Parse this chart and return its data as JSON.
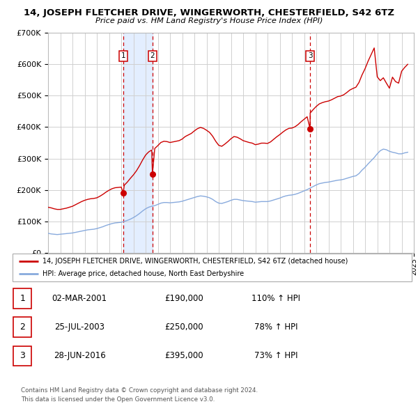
{
  "title": "14, JOSEPH FLETCHER DRIVE, WINGERWORTH, CHESTERFIELD, S42 6TZ",
  "subtitle": "Price paid vs. HM Land Registry's House Price Index (HPI)",
  "sale_color": "#cc0000",
  "hpi_color": "#88aadd",
  "ylim": [
    0,
    700000
  ],
  "yticks": [
    0,
    100000,
    200000,
    300000,
    400000,
    500000,
    600000,
    700000
  ],
  "ytick_labels": [
    "£0",
    "£100K",
    "£200K",
    "£300K",
    "£400K",
    "£500K",
    "£600K",
    "£700K"
  ],
  "sales": [
    {
      "date": 2001.16,
      "price": 190000,
      "label": "1",
      "date_str": "02-MAR-2001",
      "pct": "110%"
    },
    {
      "date": 2003.56,
      "price": 250000,
      "label": "2",
      "date_str": "25-JUL-2003",
      "pct": "78%"
    },
    {
      "date": 2016.49,
      "price": 395000,
      "label": "3",
      "date_str": "28-JUN-2016",
      "pct": "73%"
    }
  ],
  "legend_line1": "14, JOSEPH FLETCHER DRIVE, WINGERWORTH, CHESTERFIELD, S42 6TZ (detached house)",
  "legend_line2": "HPI: Average price, detached house, North East Derbyshire",
  "footer1": "Contains HM Land Registry data © Crown copyright and database right 2024.",
  "footer2": "This data is licensed under the Open Government Licence v3.0.",
  "hpi_data": [
    [
      1995.0,
      62000
    ],
    [
      1995.25,
      60000
    ],
    [
      1995.5,
      59000
    ],
    [
      1995.75,
      58000
    ],
    [
      1996.0,
      59000
    ],
    [
      1996.25,
      60000
    ],
    [
      1996.5,
      61000
    ],
    [
      1996.75,
      62000
    ],
    [
      1997.0,
      63000
    ],
    [
      1997.25,
      65000
    ],
    [
      1997.5,
      67000
    ],
    [
      1997.75,
      69000
    ],
    [
      1998.0,
      71000
    ],
    [
      1998.25,
      73000
    ],
    [
      1998.5,
      74000
    ],
    [
      1998.75,
      75000
    ],
    [
      1999.0,
      77000
    ],
    [
      1999.25,
      80000
    ],
    [
      1999.5,
      83000
    ],
    [
      1999.75,
      87000
    ],
    [
      2000.0,
      90000
    ],
    [
      2000.25,
      93000
    ],
    [
      2000.5,
      95000
    ],
    [
      2000.75,
      96000
    ],
    [
      2001.0,
      97000
    ],
    [
      2001.25,
      100000
    ],
    [
      2001.5,
      103000
    ],
    [
      2001.75,
      107000
    ],
    [
      2002.0,
      112000
    ],
    [
      2002.25,
      118000
    ],
    [
      2002.5,
      125000
    ],
    [
      2002.75,
      133000
    ],
    [
      2003.0,
      140000
    ],
    [
      2003.25,
      145000
    ],
    [
      2003.5,
      148000
    ],
    [
      2003.75,
      150000
    ],
    [
      2004.0,
      154000
    ],
    [
      2004.25,
      158000
    ],
    [
      2004.5,
      160000
    ],
    [
      2004.75,
      160000
    ],
    [
      2005.0,
      159000
    ],
    [
      2005.25,
      160000
    ],
    [
      2005.5,
      161000
    ],
    [
      2005.75,
      162000
    ],
    [
      2006.0,
      164000
    ],
    [
      2006.25,
      167000
    ],
    [
      2006.5,
      170000
    ],
    [
      2006.75,
      173000
    ],
    [
      2007.0,
      176000
    ],
    [
      2007.25,
      179000
    ],
    [
      2007.5,
      181000
    ],
    [
      2007.75,
      180000
    ],
    [
      2008.0,
      178000
    ],
    [
      2008.25,
      175000
    ],
    [
      2008.5,
      170000
    ],
    [
      2008.75,
      163000
    ],
    [
      2009.0,
      158000
    ],
    [
      2009.25,
      157000
    ],
    [
      2009.5,
      160000
    ],
    [
      2009.75,
      163000
    ],
    [
      2010.0,
      167000
    ],
    [
      2010.25,
      170000
    ],
    [
      2010.5,
      170000
    ],
    [
      2010.75,
      168000
    ],
    [
      2011.0,
      166000
    ],
    [
      2011.25,
      165000
    ],
    [
      2011.5,
      164000
    ],
    [
      2011.75,
      163000
    ],
    [
      2012.0,
      161000
    ],
    [
      2012.25,
      162000
    ],
    [
      2012.5,
      163000
    ],
    [
      2012.75,
      163000
    ],
    [
      2013.0,
      163000
    ],
    [
      2013.25,
      165000
    ],
    [
      2013.5,
      168000
    ],
    [
      2013.75,
      171000
    ],
    [
      2014.0,
      174000
    ],
    [
      2014.25,
      178000
    ],
    [
      2014.5,
      181000
    ],
    [
      2014.75,
      183000
    ],
    [
      2015.0,
      184000
    ],
    [
      2015.25,
      186000
    ],
    [
      2015.5,
      189000
    ],
    [
      2015.75,
      193000
    ],
    [
      2016.0,
      197000
    ],
    [
      2016.25,
      201000
    ],
    [
      2016.5,
      206000
    ],
    [
      2016.75,
      211000
    ],
    [
      2017.0,
      216000
    ],
    [
      2017.25,
      220000
    ],
    [
      2017.5,
      222000
    ],
    [
      2017.75,
      224000
    ],
    [
      2018.0,
      225000
    ],
    [
      2018.25,
      227000
    ],
    [
      2018.5,
      229000
    ],
    [
      2018.75,
      231000
    ],
    [
      2019.0,
      232000
    ],
    [
      2019.25,
      234000
    ],
    [
      2019.5,
      237000
    ],
    [
      2019.75,
      240000
    ],
    [
      2020.0,
      243000
    ],
    [
      2020.25,
      245000
    ],
    [
      2020.5,
      252000
    ],
    [
      2020.75,
      263000
    ],
    [
      2021.0,
      272000
    ],
    [
      2021.25,
      283000
    ],
    [
      2021.5,
      293000
    ],
    [
      2021.75,
      303000
    ],
    [
      2022.0,
      315000
    ],
    [
      2022.25,
      325000
    ],
    [
      2022.5,
      330000
    ],
    [
      2022.75,
      328000
    ],
    [
      2023.0,
      323000
    ],
    [
      2023.25,
      320000
    ],
    [
      2023.5,
      318000
    ],
    [
      2023.75,
      315000
    ],
    [
      2024.0,
      315000
    ],
    [
      2024.25,
      318000
    ],
    [
      2024.5,
      320000
    ]
  ],
  "price_data": [
    [
      1995.0,
      145000
    ],
    [
      1995.25,
      143000
    ],
    [
      1995.5,
      140000
    ],
    [
      1995.75,
      138000
    ],
    [
      1996.0,
      138000
    ],
    [
      1996.25,
      140000
    ],
    [
      1996.5,
      142000
    ],
    [
      1996.75,
      145000
    ],
    [
      1997.0,
      148000
    ],
    [
      1997.25,
      153000
    ],
    [
      1997.5,
      158000
    ],
    [
      1997.75,
      163000
    ],
    [
      1998.0,
      167000
    ],
    [
      1998.25,
      170000
    ],
    [
      1998.5,
      172000
    ],
    [
      1998.75,
      173000
    ],
    [
      1999.0,
      175000
    ],
    [
      1999.25,
      180000
    ],
    [
      1999.5,
      186000
    ],
    [
      1999.75,
      193000
    ],
    [
      2000.0,
      199000
    ],
    [
      2000.25,
      204000
    ],
    [
      2000.5,
      207000
    ],
    [
      2000.75,
      208000
    ],
    [
      2001.0,
      209000
    ],
    [
      2001.16,
      190000
    ],
    [
      2001.25,
      215000
    ],
    [
      2001.5,
      225000
    ],
    [
      2001.75,
      237000
    ],
    [
      2002.0,
      248000
    ],
    [
      2002.25,
      261000
    ],
    [
      2002.5,
      277000
    ],
    [
      2002.75,
      295000
    ],
    [
      2003.0,
      311000
    ],
    [
      2003.25,
      321000
    ],
    [
      2003.5,
      327000
    ],
    [
      2003.56,
      250000
    ],
    [
      2003.75,
      332000
    ],
    [
      2004.0,
      341000
    ],
    [
      2004.25,
      351000
    ],
    [
      2004.5,
      355000
    ],
    [
      2004.75,
      354000
    ],
    [
      2005.0,
      351000
    ],
    [
      2005.25,
      353000
    ],
    [
      2005.5,
      355000
    ],
    [
      2005.75,
      357000
    ],
    [
      2006.0,
      362000
    ],
    [
      2006.25,
      370000
    ],
    [
      2006.5,
      375000
    ],
    [
      2006.75,
      380000
    ],
    [
      2007.0,
      388000
    ],
    [
      2007.25,
      395000
    ],
    [
      2007.5,
      399000
    ],
    [
      2007.75,
      396000
    ],
    [
      2008.0,
      390000
    ],
    [
      2008.25,
      383000
    ],
    [
      2008.5,
      371000
    ],
    [
      2008.75,
      355000
    ],
    [
      2009.0,
      342000
    ],
    [
      2009.25,
      339000
    ],
    [
      2009.5,
      346000
    ],
    [
      2009.75,
      354000
    ],
    [
      2010.0,
      363000
    ],
    [
      2010.25,
      370000
    ],
    [
      2010.5,
      368000
    ],
    [
      2010.75,
      363000
    ],
    [
      2011.0,
      357000
    ],
    [
      2011.25,
      354000
    ],
    [
      2011.5,
      351000
    ],
    [
      2011.75,
      349000
    ],
    [
      2012.0,
      344000
    ],
    [
      2012.25,
      346000
    ],
    [
      2012.5,
      349000
    ],
    [
      2012.75,
      349000
    ],
    [
      2013.0,
      348000
    ],
    [
      2013.25,
      353000
    ],
    [
      2013.5,
      361000
    ],
    [
      2013.75,
      369000
    ],
    [
      2014.0,
      376000
    ],
    [
      2014.25,
      384000
    ],
    [
      2014.5,
      391000
    ],
    [
      2014.75,
      396000
    ],
    [
      2015.0,
      397000
    ],
    [
      2015.25,
      401000
    ],
    [
      2015.5,
      408000
    ],
    [
      2015.75,
      417000
    ],
    [
      2016.0,
      425000
    ],
    [
      2016.25,
      433000
    ],
    [
      2016.49,
      395000
    ],
    [
      2016.5,
      445000
    ],
    [
      2016.75,
      456000
    ],
    [
      2017.0,
      466000
    ],
    [
      2017.25,
      474000
    ],
    [
      2017.5,
      478000
    ],
    [
      2017.75,
      481000
    ],
    [
      2018.0,
      483000
    ],
    [
      2018.25,
      487000
    ],
    [
      2018.5,
      492000
    ],
    [
      2018.75,
      497000
    ],
    [
      2019.0,
      499000
    ],
    [
      2019.25,
      503000
    ],
    [
      2019.5,
      510000
    ],
    [
      2019.75,
      518000
    ],
    [
      2020.0,
      523000
    ],
    [
      2020.25,
      527000
    ],
    [
      2020.5,
      542000
    ],
    [
      2020.75,
      566000
    ],
    [
      2021.0,
      586000
    ],
    [
      2021.25,
      610000
    ],
    [
      2021.5,
      631000
    ],
    [
      2021.75,
      652000
    ],
    [
      2022.0,
      560000
    ],
    [
      2022.25,
      548000
    ],
    [
      2022.5,
      557000
    ],
    [
      2022.75,
      540000
    ],
    [
      2023.0,
      524000
    ],
    [
      2023.25,
      559000
    ],
    [
      2023.5,
      545000
    ],
    [
      2023.75,
      540000
    ],
    [
      2024.0,
      578000
    ],
    [
      2024.25,
      590000
    ],
    [
      2024.5,
      600000
    ]
  ]
}
